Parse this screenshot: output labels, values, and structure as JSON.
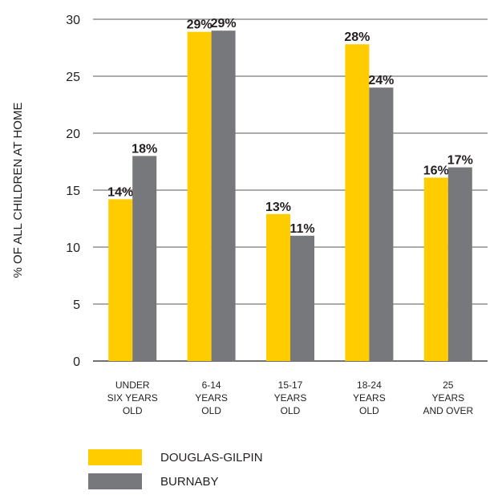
{
  "chart_data": {
    "type": "bar",
    "ylabel": "% OF ALL CHILDREN AT HOME",
    "ylim": [
      0,
      30
    ],
    "yticks": [
      0,
      5,
      10,
      15,
      20,
      25,
      30
    ],
    "grid": true,
    "categories": [
      [
        "UNDER",
        "SIX YEARS",
        "OLD"
      ],
      [
        "6-14",
        "YEARS",
        "OLD"
      ],
      [
        "15-17",
        "YEARS",
        "OLD"
      ],
      [
        "18-24",
        "YEARS",
        "OLD"
      ],
      [
        "25",
        "YEARS",
        "AND OVER"
      ]
    ],
    "series": [
      {
        "name": "DOUGLAS-GILPIN",
        "color": "#ffcc00",
        "values": [
          14.2,
          28.9,
          12.9,
          27.8,
          16.1
        ],
        "labels": [
          "14%",
          "29%",
          "13%",
          "28%",
          "16%"
        ]
      },
      {
        "name": "BURNABY",
        "color": "#77787b",
        "values": [
          18.0,
          29.0,
          11.0,
          24.0,
          17.0
        ],
        "labels": [
          "18%",
          "29%",
          "11%",
          "24%",
          "17%"
        ]
      }
    ],
    "legend_position": "bottom-left"
  },
  "legend": {
    "items": [
      {
        "label": "DOUGLAS-GILPIN",
        "color": "#ffcc00"
      },
      {
        "label": "BURNABY",
        "color": "#77787b"
      }
    ]
  }
}
